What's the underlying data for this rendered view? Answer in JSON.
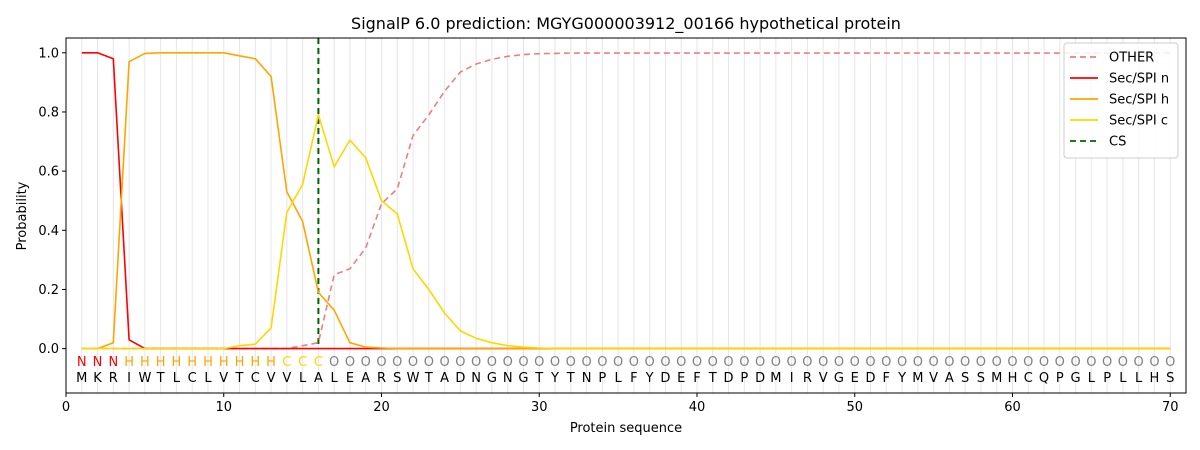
{
  "chart_data": {
    "type": "line",
    "title": "SignalP 6.0 prediction: MGYG000003912_00166 hypothetical protein",
    "xlabel": "Protein sequence",
    "ylabel": "Probability",
    "xlim": [
      0,
      71
    ],
    "ylim": [
      -0.15,
      1.05
    ],
    "x_ticks": [
      0,
      10,
      20,
      30,
      40,
      50,
      60,
      70
    ],
    "y_ticks": [
      0.0,
      0.2,
      0.4,
      0.6,
      0.8,
      1.0
    ],
    "x_tick_labels": [
      "0",
      "10",
      "20",
      "30",
      "40",
      "50",
      "60",
      "70"
    ],
    "y_tick_labels": [
      "0.0",
      "0.2",
      "0.4",
      "0.6",
      "0.8",
      "1.0"
    ],
    "grid": "vertical lines at each residue",
    "legend_position": "top-right",
    "sequence": [
      "M",
      "K",
      "R",
      "I",
      "W",
      "T",
      "L",
      "C",
      "L",
      "V",
      "T",
      "C",
      "V",
      "V",
      "L",
      "A",
      "L",
      "E",
      "A",
      "R",
      "S",
      "W",
      "T",
      "A",
      "D",
      "N",
      "G",
      "N",
      "G",
      "T",
      "Y",
      "T",
      "N",
      "P",
      "L",
      "F",
      "Y",
      "D",
      "E",
      "F",
      "T",
      "D",
      "P",
      "D",
      "M",
      "I",
      "R",
      "V",
      "G",
      "E",
      "D",
      "F",
      "Y",
      "M",
      "V",
      "A",
      "S",
      "S",
      "M",
      "H",
      "C",
      "Q",
      "P",
      "G",
      "L",
      "P",
      "L",
      "L",
      "H",
      "S"
    ],
    "labels": [
      "N",
      "N",
      "N",
      "H",
      "H",
      "H",
      "H",
      "H",
      "H",
      "H",
      "H",
      "H",
      "H",
      "C",
      "C",
      "C",
      "O",
      "O",
      "O",
      "O",
      "O",
      "O",
      "O",
      "O",
      "O",
      "O",
      "O",
      "O",
      "O",
      "O",
      "O",
      "O",
      "O",
      "O",
      "O",
      "O",
      "O",
      "O",
      "O",
      "O",
      "O",
      "O",
      "O",
      "O",
      "O",
      "O",
      "O",
      "O",
      "O",
      "O",
      "O",
      "O",
      "O",
      "O",
      "O",
      "O",
      "O",
      "O",
      "O",
      "O",
      "O",
      "O",
      "O",
      "O",
      "O",
      "O",
      "O",
      "O",
      "O",
      "O"
    ],
    "label_colors": {
      "N": "#ff0000",
      "H": "#ffa500",
      "C": "#ffd700",
      "O": "#808080"
    },
    "cs_position": 16,
    "series": [
      {
        "name": "OTHER",
        "color": "#e88080",
        "dash": "dashed",
        "values": [
          0.0,
          0.0,
          0.0,
          0.0,
          0.0,
          0.0,
          0.0,
          0.0,
          0.0,
          0.0,
          0.0,
          0.0,
          0.0,
          0.0,
          0.01,
          0.02,
          0.25,
          0.27,
          0.34,
          0.49,
          0.54,
          0.72,
          0.79,
          0.87,
          0.935,
          0.962,
          0.978,
          0.988,
          0.994,
          0.997,
          0.998,
          0.999,
          0.999,
          0.999,
          0.999,
          0.999,
          0.999,
          0.999,
          0.999,
          0.999,
          0.999,
          0.999,
          0.999,
          0.999,
          0.999,
          0.999,
          0.999,
          0.999,
          0.999,
          0.999,
          0.999,
          0.999,
          0.999,
          0.999,
          0.999,
          0.999,
          0.999,
          0.999,
          0.999,
          0.999,
          0.999,
          0.999,
          0.999,
          0.999,
          0.999,
          0.999,
          0.999,
          0.999,
          0.999,
          0.999
        ]
      },
      {
        "name": "Sec/SPI n",
        "color": "#ff0000",
        "dash": "solid",
        "values": [
          1.0,
          1.0,
          0.98,
          0.03,
          0.0,
          0.0,
          0.0,
          0.0,
          0.0,
          0.0,
          0.0,
          0.0,
          0.0,
          0.0,
          0.0,
          0.0,
          0.0,
          0.0,
          0.0,
          0.0,
          0.0,
          0.0,
          0.0,
          0.0,
          0.0,
          0.0,
          0.0,
          0.0,
          0.0,
          0.0,
          0.0,
          0.0,
          0.0,
          0.0,
          0.0,
          0.0,
          0.0,
          0.0,
          0.0,
          0.0,
          0.0,
          0.0,
          0.0,
          0.0,
          0.0,
          0.0,
          0.0,
          0.0,
          0.0,
          0.0,
          0.0,
          0.0,
          0.0,
          0.0,
          0.0,
          0.0,
          0.0,
          0.0,
          0.0,
          0.0,
          0.0,
          0.0,
          0.0,
          0.0,
          0.0,
          0.0,
          0.0,
          0.0,
          0.0,
          0.0
        ]
      },
      {
        "name": "Sec/SPI h",
        "color": "#ffa500",
        "dash": "solid",
        "values": [
          0.0,
          0.0,
          0.02,
          0.97,
          0.998,
          1.0,
          1.0,
          1.0,
          1.0,
          1.0,
          0.99,
          0.98,
          0.92,
          0.53,
          0.43,
          0.19,
          0.13,
          0.02,
          0.005,
          0.002,
          0.0,
          0.0,
          0.0,
          0.0,
          0.0,
          0.0,
          0.0,
          0.0,
          0.0,
          0.0,
          0.0,
          0.0,
          0.0,
          0.0,
          0.0,
          0.0,
          0.0,
          0.0,
          0.0,
          0.0,
          0.0,
          0.0,
          0.0,
          0.0,
          0.0,
          0.0,
          0.0,
          0.0,
          0.0,
          0.0,
          0.0,
          0.0,
          0.0,
          0.0,
          0.0,
          0.0,
          0.0,
          0.0,
          0.0,
          0.0,
          0.0,
          0.0,
          0.0,
          0.0,
          0.0,
          0.0,
          0.0,
          0.0,
          0.0,
          0.0
        ]
      },
      {
        "name": "Sec/SPI c",
        "color": "#ffd700",
        "dash": "solid",
        "values": [
          0.0,
          0.0,
          0.0,
          0.0,
          0.0,
          0.0,
          0.0,
          0.0,
          0.0,
          0.0,
          0.01,
          0.015,
          0.07,
          0.46,
          0.555,
          0.79,
          0.615,
          0.705,
          0.645,
          0.5,
          0.455,
          0.27,
          0.2,
          0.12,
          0.06,
          0.035,
          0.02,
          0.01,
          0.005,
          0.002,
          0.0,
          0.0,
          0.0,
          0.0,
          0.0,
          0.0,
          0.0,
          0.0,
          0.0,
          0.0,
          0.0,
          0.0,
          0.0,
          0.0,
          0.0,
          0.0,
          0.0,
          0.0,
          0.0,
          0.0,
          0.0,
          0.0,
          0.0,
          0.0,
          0.0,
          0.0,
          0.0,
          0.0,
          0.0,
          0.0,
          0.0,
          0.0,
          0.0,
          0.0,
          0.0,
          0.0,
          0.0,
          0.0,
          0.0,
          0.0
        ]
      }
    ],
    "cs_legend": {
      "name": "CS",
      "color": "#006400",
      "dash": "dashed"
    }
  }
}
